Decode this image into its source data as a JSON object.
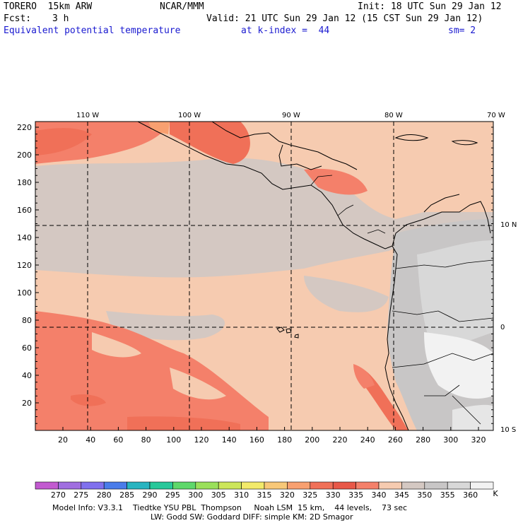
{
  "header": {
    "model": "TORERO  15km ARW",
    "center": "NCAR/MMM",
    "init": "Init: 18 UTC Sun 29 Jan 12",
    "fcst_label": "Fcst:",
    "fcst_value": "3 h",
    "valid": "Valid: 21 UTC Sun 29 Jan 12 (15 CST Sun 29 Jan 12)",
    "field": "Equivalent potential temperature",
    "level": "at k-index =  44",
    "smooth": "sm= 2"
  },
  "map": {
    "lon_labels": [
      "110 W",
      "100 W",
      "90 W",
      "80 W",
      "70 W"
    ],
    "lat_labels": [
      "10 N",
      "0",
      "10 S"
    ],
    "y_ticks": [
      "220",
      "200",
      "180",
      "160",
      "140",
      "120",
      "100",
      "80",
      "60",
      "40",
      "20"
    ],
    "x_ticks": [
      "20",
      "40",
      "60",
      "80",
      "100",
      "120",
      "140",
      "160",
      "180",
      "200",
      "220",
      "240",
      "260",
      "280",
      "300",
      "320"
    ]
  },
  "colorbar": {
    "unit": "K",
    "labels": [
      "270",
      "275",
      "280",
      "285",
      "290",
      "295",
      "300",
      "305",
      "310",
      "315",
      "320",
      "325",
      "330",
      "335",
      "340",
      "345",
      "350",
      "355",
      "360"
    ],
    "colors": [
      "#c25ad0",
      "#a06ee0",
      "#8070ee",
      "#4a7cea",
      "#28b4c0",
      "#28c89a",
      "#5ed86a",
      "#9ae05a",
      "#cce65a",
      "#f2ea6a",
      "#f8c878",
      "#f8a070",
      "#f07058",
      "#e85848",
      "#f4806a",
      "#f6cbb0",
      "#d4c8c2",
      "#c8c6c6",
      "#d8d8d8",
      "#f2f2f2"
    ]
  },
  "footer": {
    "line1": "Model Info: V3.3.1    Tiedtke YSU PBL  Thompson     Noah LSM  15 km,    44 levels,    73 sec",
    "line2": "LW: Godd SW: Goddard DIFF: simple KM: 2D Smagor"
  }
}
